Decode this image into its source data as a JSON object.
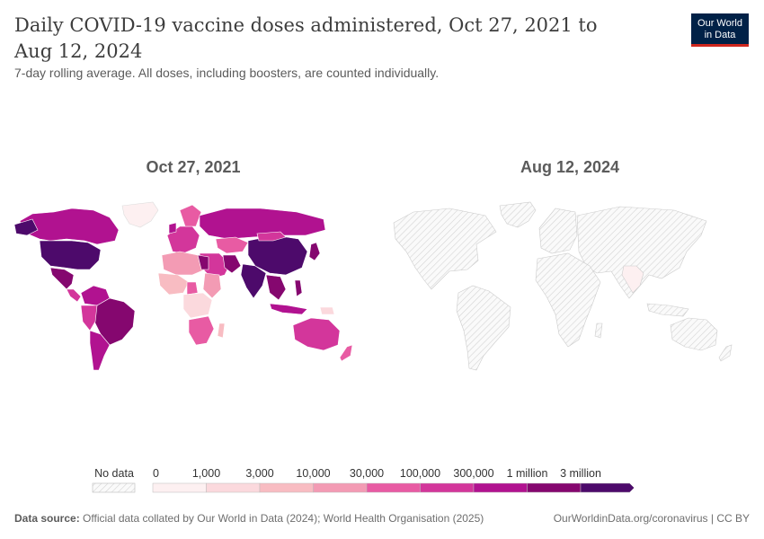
{
  "title": "Daily COVID-19 vaccine doses administered, Oct 27, 2021 to Aug 12, 2024",
  "subtitle": "7-day rolling average. All doses, including boosters, are counted individually.",
  "logo": {
    "line1": "Our World",
    "line2": "in Data"
  },
  "maps": [
    {
      "label": "Oct 27, 2021"
    },
    {
      "label": "Aug 12, 2024"
    }
  ],
  "legend": {
    "no_data_label": "No data",
    "bins": [
      {
        "label": "0",
        "color": "#fdf0f1"
      },
      {
        "label": "1,000",
        "color": "#fbd9dd"
      },
      {
        "label": "3,000",
        "color": "#f8bcc2"
      },
      {
        "label": "10,000",
        "color": "#f39bb4"
      },
      {
        "label": "30,000",
        "color": "#e85ba3"
      },
      {
        "label": "100,000",
        "color": "#d3369b"
      },
      {
        "label": "300,000",
        "color": "#b11290"
      },
      {
        "label": "1 million",
        "color": "#85076f"
      },
      {
        "label": "3 million",
        "color": "#4d0a6b"
      }
    ]
  },
  "footer": {
    "source_label": "Data source:",
    "source_text": "Official data collated by Our World in Data (2024); World Health Organisation (2025)",
    "right": "OurWorldinData.org/coronavirus | CC BY"
  }
}
